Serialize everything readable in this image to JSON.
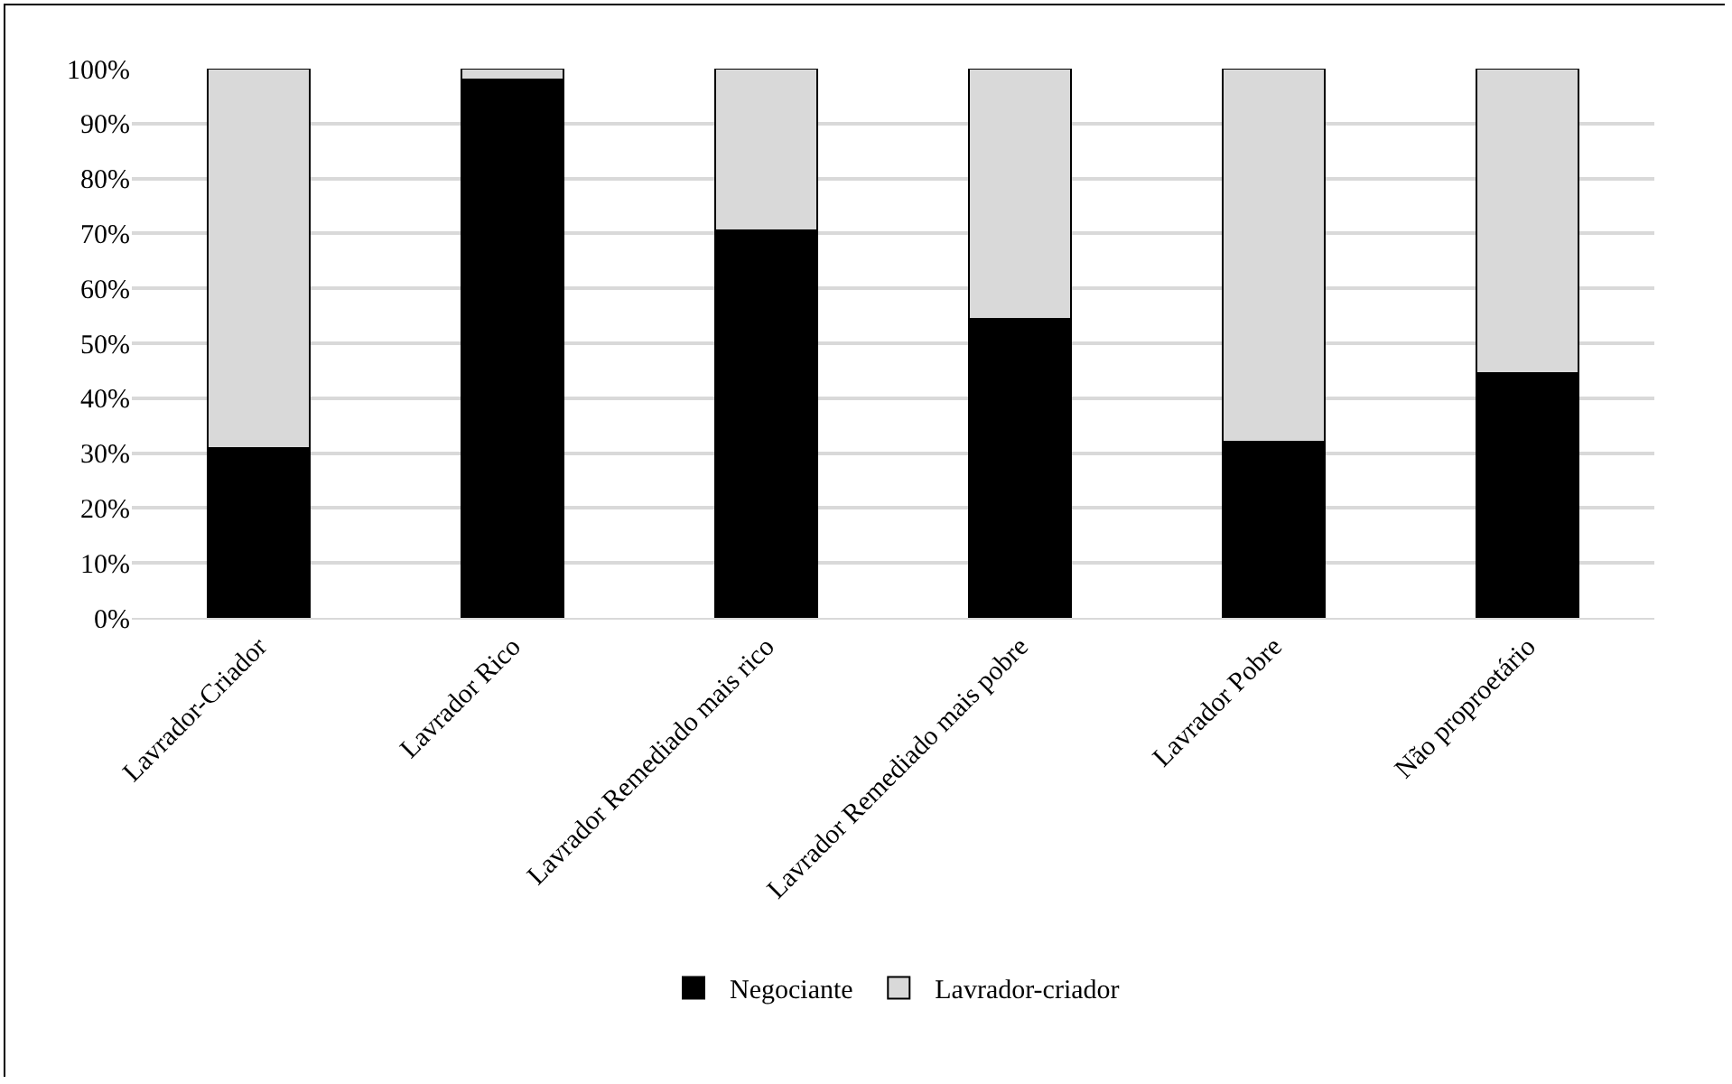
{
  "chart_data": {
    "type": "bar",
    "stacked": true,
    "categories": [
      "Lavrador-Criador",
      "Lavrador Rico",
      "Lavrador Remediado mais rico",
      "Lavrador Remediado mais pobre",
      "Lavrador Pobre",
      "Não proproetário"
    ],
    "series": [
      {
        "name": "Negociante",
        "color": "#000000",
        "values": [
          31,
          98,
          70.5,
          54.5,
          32,
          44.5
        ]
      },
      {
        "name": "Lavrador-criador",
        "color": "#d9d9d9",
        "values": [
          69,
          2,
          29.5,
          45.5,
          68,
          55.5
        ]
      }
    ],
    "ylim": [
      0,
      100
    ],
    "yticks": [
      {
        "value": 0,
        "label": "0%"
      },
      {
        "value": 10,
        "label": "10%"
      },
      {
        "value": 20,
        "label": "20%"
      },
      {
        "value": 30,
        "label": "30%"
      },
      {
        "value": 40,
        "label": "40%"
      },
      {
        "value": 50,
        "label": "50%"
      },
      {
        "value": 60,
        "label": "60%"
      },
      {
        "value": 70,
        "label": "70%"
      },
      {
        "value": 80,
        "label": "80%"
      },
      {
        "value": 90,
        "label": "90%"
      },
      {
        "value": 100,
        "label": "100%"
      }
    ],
    "grid": "y",
    "legend": "bottom"
  }
}
